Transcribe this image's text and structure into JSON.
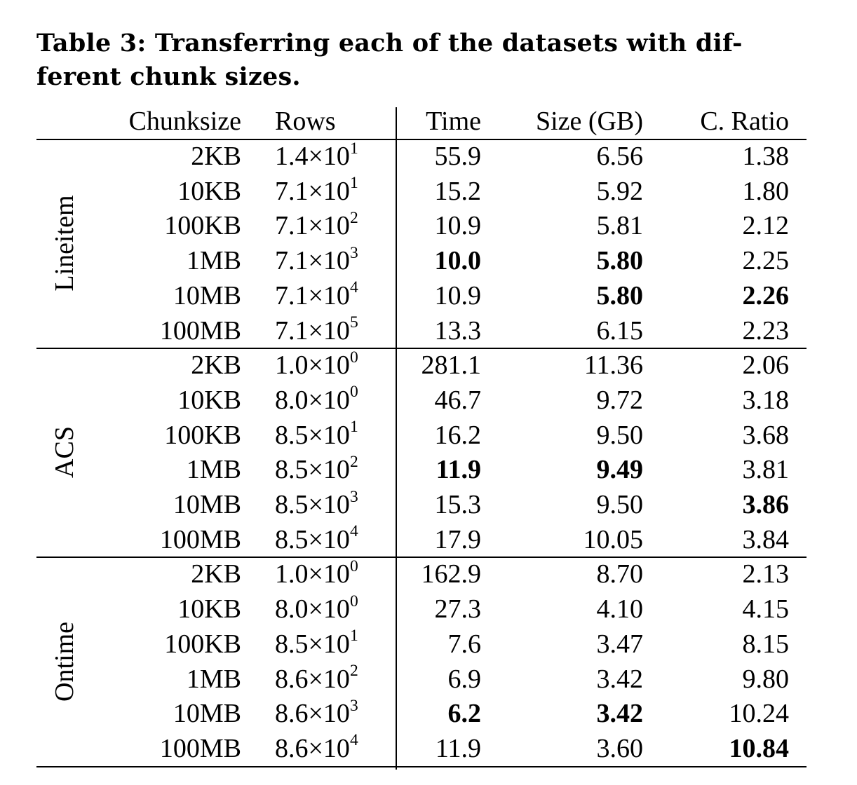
{
  "caption": "Table 3: Transferring each of the datasets with different chunk sizes.",
  "caption_lines": [
    "Table 3: Transferring each of the datasets with dif-",
    "ferent chunk sizes."
  ],
  "headers": {
    "chunksize": "Chunksize",
    "rows": "Rows",
    "time": "Time",
    "size": "Size (GB)",
    "ratio": "C. Ratio"
  },
  "groups": [
    {
      "name": "Lineitem",
      "rows": [
        {
          "chunksize": "2KB",
          "rows_mant": "1.4×10",
          "rows_exp": "1",
          "time": "55.9",
          "size": "6.56",
          "ratio": "1.38",
          "bold": []
        },
        {
          "chunksize": "10KB",
          "rows_mant": "7.1×10",
          "rows_exp": "1",
          "time": "15.2",
          "size": "5.92",
          "ratio": "1.80",
          "bold": []
        },
        {
          "chunksize": "100KB",
          "rows_mant": "7.1×10",
          "rows_exp": "2",
          "time": "10.9",
          "size": "5.81",
          "ratio": "2.12",
          "bold": []
        },
        {
          "chunksize": "1MB",
          "rows_mant": "7.1×10",
          "rows_exp": "3",
          "time": "10.0",
          "size": "5.80",
          "ratio": "2.25",
          "bold": [
            "time",
            "size"
          ]
        },
        {
          "chunksize": "10MB",
          "rows_mant": "7.1×10",
          "rows_exp": "4",
          "time": "10.9",
          "size": "5.80",
          "ratio": "2.26",
          "bold": [
            "size",
            "ratio"
          ]
        },
        {
          "chunksize": "100MB",
          "rows_mant": "7.1×10",
          "rows_exp": "5",
          "time": "13.3",
          "size": "6.15",
          "ratio": "2.23",
          "bold": []
        }
      ]
    },
    {
      "name": "ACS",
      "rows": [
        {
          "chunksize": "2KB",
          "rows_mant": "1.0×10",
          "rows_exp": "0",
          "time": "281.1",
          "size": "11.36",
          "ratio": "2.06",
          "bold": []
        },
        {
          "chunksize": "10KB",
          "rows_mant": "8.0×10",
          "rows_exp": "0",
          "time": "46.7",
          "size": "9.72",
          "ratio": "3.18",
          "bold": []
        },
        {
          "chunksize": "100KB",
          "rows_mant": "8.5×10",
          "rows_exp": "1",
          "time": "16.2",
          "size": "9.50",
          "ratio": "3.68",
          "bold": []
        },
        {
          "chunksize": "1MB",
          "rows_mant": "8.5×10",
          "rows_exp": "2",
          "time": "11.9",
          "size": "9.49",
          "ratio": "3.81",
          "bold": [
            "time",
            "size"
          ]
        },
        {
          "chunksize": "10MB",
          "rows_mant": "8.5×10",
          "rows_exp": "3",
          "time": "15.3",
          "size": "9.50",
          "ratio": "3.86",
          "bold": [
            "ratio"
          ]
        },
        {
          "chunksize": "100MB",
          "rows_mant": "8.5×10",
          "rows_exp": "4",
          "time": "17.9",
          "size": "10.05",
          "ratio": "3.84",
          "bold": []
        }
      ]
    },
    {
      "name": "Ontime",
      "rows": [
        {
          "chunksize": "2KB",
          "rows_mant": "1.0×10",
          "rows_exp": "0",
          "time": "162.9",
          "size": "8.70",
          "ratio": "2.13",
          "bold": []
        },
        {
          "chunksize": "10KB",
          "rows_mant": "8.0×10",
          "rows_exp": "0",
          "time": "27.3",
          "size": "4.10",
          "ratio": "4.15",
          "bold": []
        },
        {
          "chunksize": "100KB",
          "rows_mant": "8.5×10",
          "rows_exp": "1",
          "time": "7.6",
          "size": "3.47",
          "ratio": "8.15",
          "bold": []
        },
        {
          "chunksize": "1MB",
          "rows_mant": "8.6×10",
          "rows_exp": "2",
          "time": "6.9",
          "size": "3.42",
          "ratio": "9.80",
          "bold": []
        },
        {
          "chunksize": "10MB",
          "rows_mant": "8.6×10",
          "rows_exp": "3",
          "time": "6.2",
          "size": "3.42",
          "ratio": "10.24",
          "bold": [
            "time",
            "size"
          ]
        },
        {
          "chunksize": "100MB",
          "rows_mant": "8.6×10",
          "rows_exp": "4",
          "time": "11.9",
          "size": "3.60",
          "ratio": "10.84",
          "bold": [
            "ratio"
          ]
        }
      ]
    }
  ]
}
